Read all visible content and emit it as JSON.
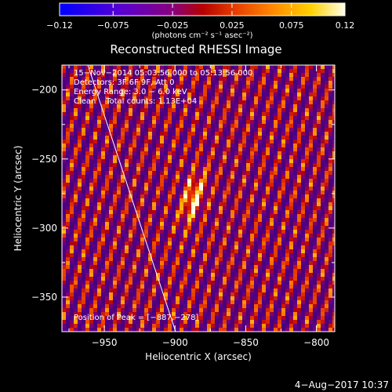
{
  "chart_data": {
    "type": "heatmap",
    "title": "Reconstructed RHESSI Image",
    "xlabel": "Heliocentric X (arcsec)",
    "ylabel": "Heliocentric Y (arcsec)",
    "xlim": [
      -980,
      -787
    ],
    "ylim": [
      -375,
      -182
    ],
    "xticks": [
      -950,
      -900,
      -850,
      -800
    ],
    "xtick_labels": [
      "−950",
      "−900",
      "−850",
      "−800"
    ],
    "yticks": [
      -200,
      -250,
      -300,
      -350
    ],
    "ytick_labels": [
      "−200",
      "−250",
      "−300",
      "−350"
    ],
    "colorbar": {
      "min": -0.12,
      "max": 0.12,
      "ticks": [
        -0.12,
        -0.075,
        -0.025,
        0.025,
        0.075,
        0.12
      ],
      "tick_labels": [
        "−0.12",
        "−0.075",
        "−0.025",
        "0.025",
        "0.075",
        "0.12"
      ],
      "unit_label": "(photons cm⁻² s⁻¹ asec⁻²)"
    },
    "annotations": [
      "15−Nov−2014 05:03:56.000 to 05:13:56.000",
      "Detectors: 3F 6F 9F, Att 0",
      "Energy Range: 3.0 − 6.0 keV",
      "Clean    Total counts: 1.13E+04"
    ],
    "peak_label": "Position of Peak = [−887,−278]",
    "peak": {
      "x": -887,
      "y": -278
    },
    "grid": false
  },
  "footer": {
    "date": "4−Aug−2017 10:37"
  }
}
